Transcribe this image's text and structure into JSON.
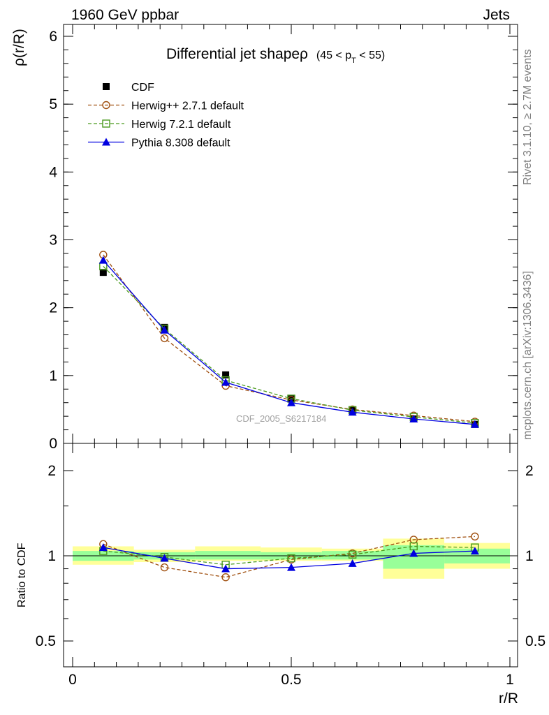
{
  "header": {
    "left": "1960 GeV ppbar",
    "right": "Jets"
  },
  "side_labels": {
    "top": "Rivet 3.1.10, ≥ 2.7M events",
    "bottom": "mcplots.cern.ch [arXiv:1306.3436]"
  },
  "chart_data": {
    "type": "line",
    "title": "Differential jet shapeρ",
    "title_suffix": "(45 < p",
    "title_sub": "T",
    "title_suffix_end": " < 55)",
    "watermark": "CDF_2005_S6217184",
    "xlabel": "r/R",
    "ylabel": "ρ(r/R)",
    "ratio_ylabel": "Ratio to CDF",
    "xlim": [
      0,
      1
    ],
    "ylim": [
      0,
      6.2
    ],
    "ratio_ylim": [
      0.35,
      2.4
    ],
    "log_y_ratio": true,
    "x_ticks": [
      "0",
      "0.5",
      "1"
    ],
    "y_ticks": [
      "0",
      "1",
      "2",
      "3",
      "4",
      "5",
      "6"
    ],
    "ratio_y_ticks": [
      "0.5",
      "1",
      "2"
    ],
    "x": [
      0.07,
      0.21,
      0.35,
      0.5,
      0.64,
      0.78,
      0.92
    ],
    "bin_edges": [
      0,
      0.14,
      0.28,
      0.43,
      0.57,
      0.71,
      0.85,
      1.0
    ],
    "series": [
      {
        "name": "CDF",
        "color": "#000000",
        "marker": "square-filled",
        "values": [
          2.52,
          1.71,
          1.01,
          0.66,
          0.49,
          0.36,
          0.28
        ]
      },
      {
        "name": "Herwig++ 2.7.1 default",
        "color": "#a05010",
        "marker": "circle-open",
        "dashed": true,
        "values": [
          2.78,
          1.55,
          0.85,
          0.64,
          0.5,
          0.41,
          0.32
        ],
        "ratio": [
          1.1,
          0.91,
          0.84,
          0.97,
          1.02,
          1.14,
          1.17
        ]
      },
      {
        "name": "Herwig 7.2.1 default",
        "color": "#4a9a1e",
        "marker": "square-open",
        "dashed": true,
        "values": [
          2.61,
          1.69,
          0.93,
          0.66,
          0.49,
          0.39,
          0.3
        ],
        "ratio": [
          1.04,
          0.99,
          0.93,
          0.98,
          1.01,
          1.08,
          1.07
        ]
      },
      {
        "name": "Pythia 8.308 default",
        "color": "#0000e0",
        "marker": "triangle-filled",
        "dashed": false,
        "values": [
          2.7,
          1.67,
          0.9,
          0.6,
          0.46,
          0.36,
          0.28
        ],
        "ratio": [
          1.07,
          0.98,
          0.9,
          0.91,
          0.94,
          1.02,
          1.04
        ]
      }
    ],
    "bands": {
      "yellow": [
        [
          0.93,
          1.08
        ],
        [
          0.95,
          1.05
        ],
        [
          0.96,
          1.08
        ],
        [
          0.96,
          1.07
        ],
        [
          0.96,
          1.06
        ],
        [
          0.83,
          1.15
        ],
        [
          0.9,
          1.11
        ]
      ],
      "green": [
        [
          0.96,
          1.04
        ],
        [
          0.97,
          1.03
        ],
        [
          0.97,
          1.04
        ],
        [
          0.97,
          1.03
        ],
        [
          0.97,
          1.04
        ],
        [
          0.9,
          1.09
        ],
        [
          0.94,
          1.06
        ]
      ]
    },
    "band_colors": {
      "yellow": "#ffff99",
      "green": "#99ff99"
    }
  }
}
